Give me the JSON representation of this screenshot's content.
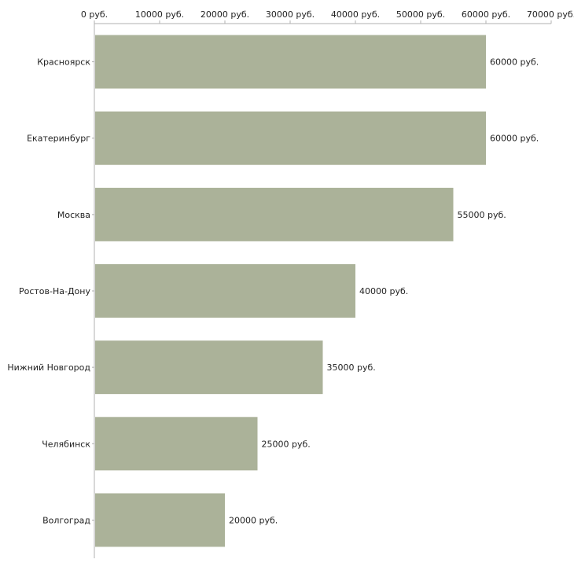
{
  "colors": {
    "bar": "#abb299",
    "axis": "#b0b0b0",
    "text": "#222222"
  },
  "chart_data": {
    "type": "bar",
    "orientation": "horizontal",
    "title": "",
    "xlabel": "",
    "ylabel": "",
    "unit_suffix": " руб.",
    "xlim": [
      0,
      70000
    ],
    "x_ticks": [
      0,
      10000,
      20000,
      30000,
      40000,
      50000,
      60000,
      70000
    ],
    "x_tick_labels": [
      "0 руб.",
      "10000 руб.",
      "20000 руб.",
      "30000 руб.",
      "40000 руб.",
      "50000 руб.",
      "60000 руб.",
      "70000 руб."
    ],
    "axis_position": "top",
    "grid": false,
    "legend": "none",
    "categories": [
      "Красноярск",
      "Екатеринбург",
      "Москва",
      "Ростов-На-Дону",
      "Нижний Новгород",
      "Челябинск",
      "Волгоград"
    ],
    "values": [
      60000,
      60000,
      55000,
      40000,
      35000,
      25000,
      20000
    ],
    "value_labels": [
      "60000 руб.",
      "60000 руб.",
      "55000 руб.",
      "40000 руб.",
      "35000 руб.",
      "25000 руб.",
      "20000 руб."
    ]
  }
}
